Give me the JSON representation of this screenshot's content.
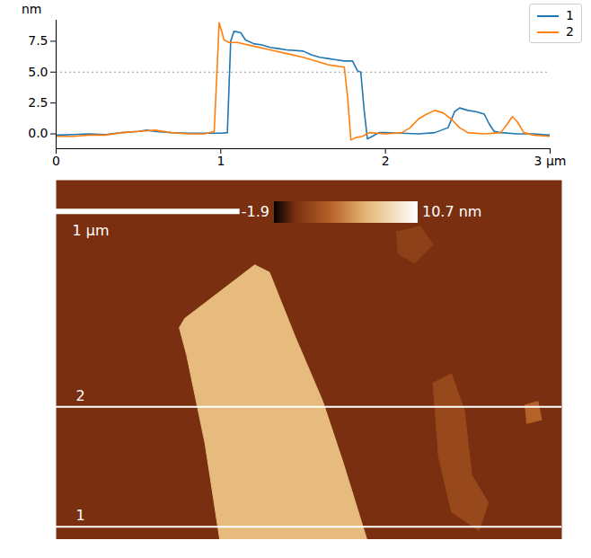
{
  "chart_data": [
    {
      "type": "line",
      "y_label": "nm",
      "xlim": [
        0,
        3
      ],
      "xticks": [
        0,
        1,
        2,
        {
          "value": 3,
          "label": "3 μm"
        }
      ],
      "ylim": [
        -1.2,
        9.2
      ],
      "yticks": [
        {
          "value": 0,
          "label": "0.0"
        },
        {
          "value": 2.5,
          "label": "2.5"
        },
        {
          "value": 5,
          "label": "5.0"
        },
        {
          "value": 7.5,
          "label": "7.5"
        }
      ],
      "hline": 5,
      "grid": false,
      "legend": "upper right",
      "series": [
        {
          "name": "1",
          "color": "#1f77b4",
          "x": [
            0,
            0.1,
            0.2,
            0.3,
            0.4,
            0.5,
            0.55,
            0.6,
            0.7,
            0.8,
            0.9,
            1.0,
            1.04,
            1.06,
            1.08,
            1.12,
            1.15,
            1.2,
            1.25,
            1.3,
            1.35,
            1.4,
            1.5,
            1.55,
            1.6,
            1.65,
            1.7,
            1.75,
            1.8,
            1.83,
            1.85,
            1.87,
            1.89,
            1.92,
            1.96,
            2.0,
            2.1,
            2.2,
            2.3,
            2.38,
            2.42,
            2.45,
            2.5,
            2.55,
            2.6,
            2.63,
            2.66,
            2.7,
            2.8,
            2.9,
            3.0
          ],
          "values": [
            -0.1,
            -0.05,
            0,
            -0.05,
            0.1,
            0.2,
            0.3,
            0.2,
            0.1,
            0.05,
            0.05,
            0.05,
            0.1,
            7.5,
            8.3,
            8.2,
            7.6,
            7.3,
            7.2,
            7.0,
            6.9,
            6.8,
            6.7,
            6.4,
            6.2,
            6.1,
            6.0,
            5.9,
            5.9,
            5.1,
            5.0,
            2.0,
            -0.4,
            -0.2,
            0.1,
            0.1,
            0.05,
            0,
            0.1,
            0.5,
            1.8,
            2.1,
            1.9,
            1.8,
            1.6,
            0.8,
            0.2,
            0.1,
            0,
            0,
            -0.1
          ]
        },
        {
          "name": "2",
          "color": "#ff7f0e",
          "x": [
            0,
            0.1,
            0.2,
            0.3,
            0.4,
            0.5,
            0.6,
            0.7,
            0.8,
            0.9,
            0.96,
            0.98,
            0.99,
            1.02,
            1.05,
            1.1,
            1.2,
            1.3,
            1.4,
            1.5,
            1.6,
            1.65,
            1.7,
            1.75,
            1.77,
            1.79,
            1.82,
            1.86,
            1.9,
            2.0,
            2.1,
            2.15,
            2.2,
            2.25,
            2.3,
            2.35,
            2.4,
            2.45,
            2.5,
            2.6,
            2.7,
            2.74,
            2.77,
            2.8,
            2.84,
            2.9,
            3.0
          ],
          "values": [
            -0.2,
            -0.2,
            -0.1,
            -0.1,
            0.1,
            0.2,
            0.3,
            0.1,
            0,
            0,
            0.2,
            6.0,
            9.0,
            7.6,
            7.4,
            7.4,
            7.1,
            6.8,
            6.5,
            6.2,
            5.8,
            5.6,
            5.5,
            5.4,
            3.0,
            -0.5,
            -0.3,
            -0.2,
            0.1,
            0,
            0.1,
            0.5,
            1.2,
            1.6,
            1.9,
            1.7,
            1.2,
            0.5,
            0.1,
            0,
            0.1,
            0.8,
            1.4,
            1.0,
            0.1,
            -0.1,
            -0.2
          ]
        }
      ]
    },
    {
      "type": "heatmap",
      "xlim": [
        0,
        2.75
      ],
      "ylim": [
        0,
        1.95
      ],
      "tick_labels": false,
      "zlim": [
        -1.9,
        10.7
      ],
      "zticks": [
        {
          "value": -1.9,
          "label": "-1.9"
        },
        {
          "value": 10.7,
          "label": "10.7 nm"
        }
      ],
      "background": 0,
      "regions": [
        {
          "height": 6.5,
          "outline": [
            [
              0.7,
              0.75
            ],
            [
              1.08,
              0.46
            ],
            [
              1.16,
              0.5
            ],
            [
              1.3,
              0.85
            ],
            [
              1.45,
              1.2
            ],
            [
              1.56,
              1.53
            ],
            [
              1.69,
              1.95
            ],
            [
              0.89,
              1.95
            ],
            [
              0.81,
              1.43
            ],
            [
              0.71,
              0.95
            ],
            [
              0.67,
              0.8
            ]
          ]
        },
        {
          "height": 1.5,
          "outline": [
            [
              2.05,
              1.1
            ],
            [
              2.15,
              1.05
            ],
            [
              2.22,
              1.25
            ],
            [
              2.26,
              1.6
            ],
            [
              2.35,
              1.75
            ],
            [
              2.3,
              1.9
            ],
            [
              2.15,
              1.8
            ],
            [
              2.08,
              1.5
            ]
          ]
        },
        {
          "height": 1.0,
          "outline": [
            [
              1.85,
              0.28
            ],
            [
              1.98,
              0.25
            ],
            [
              2.05,
              0.35
            ],
            [
              1.95,
              0.45
            ],
            [
              1.86,
              0.4
            ]
          ]
        },
        {
          "height": 3.0,
          "outline": [
            [
              2.55,
              1.22
            ],
            [
              2.62,
              1.2
            ],
            [
              2.64,
              1.3
            ],
            [
              2.56,
              1.32
            ]
          ]
        }
      ],
      "scale_bar": {
        "length": 1,
        "label": "1 μm"
      },
      "profiles": [
        {
          "name": "2",
          "y": 1.23
        },
        {
          "name": "1",
          "y": 1.88
        }
      ]
    }
  ]
}
